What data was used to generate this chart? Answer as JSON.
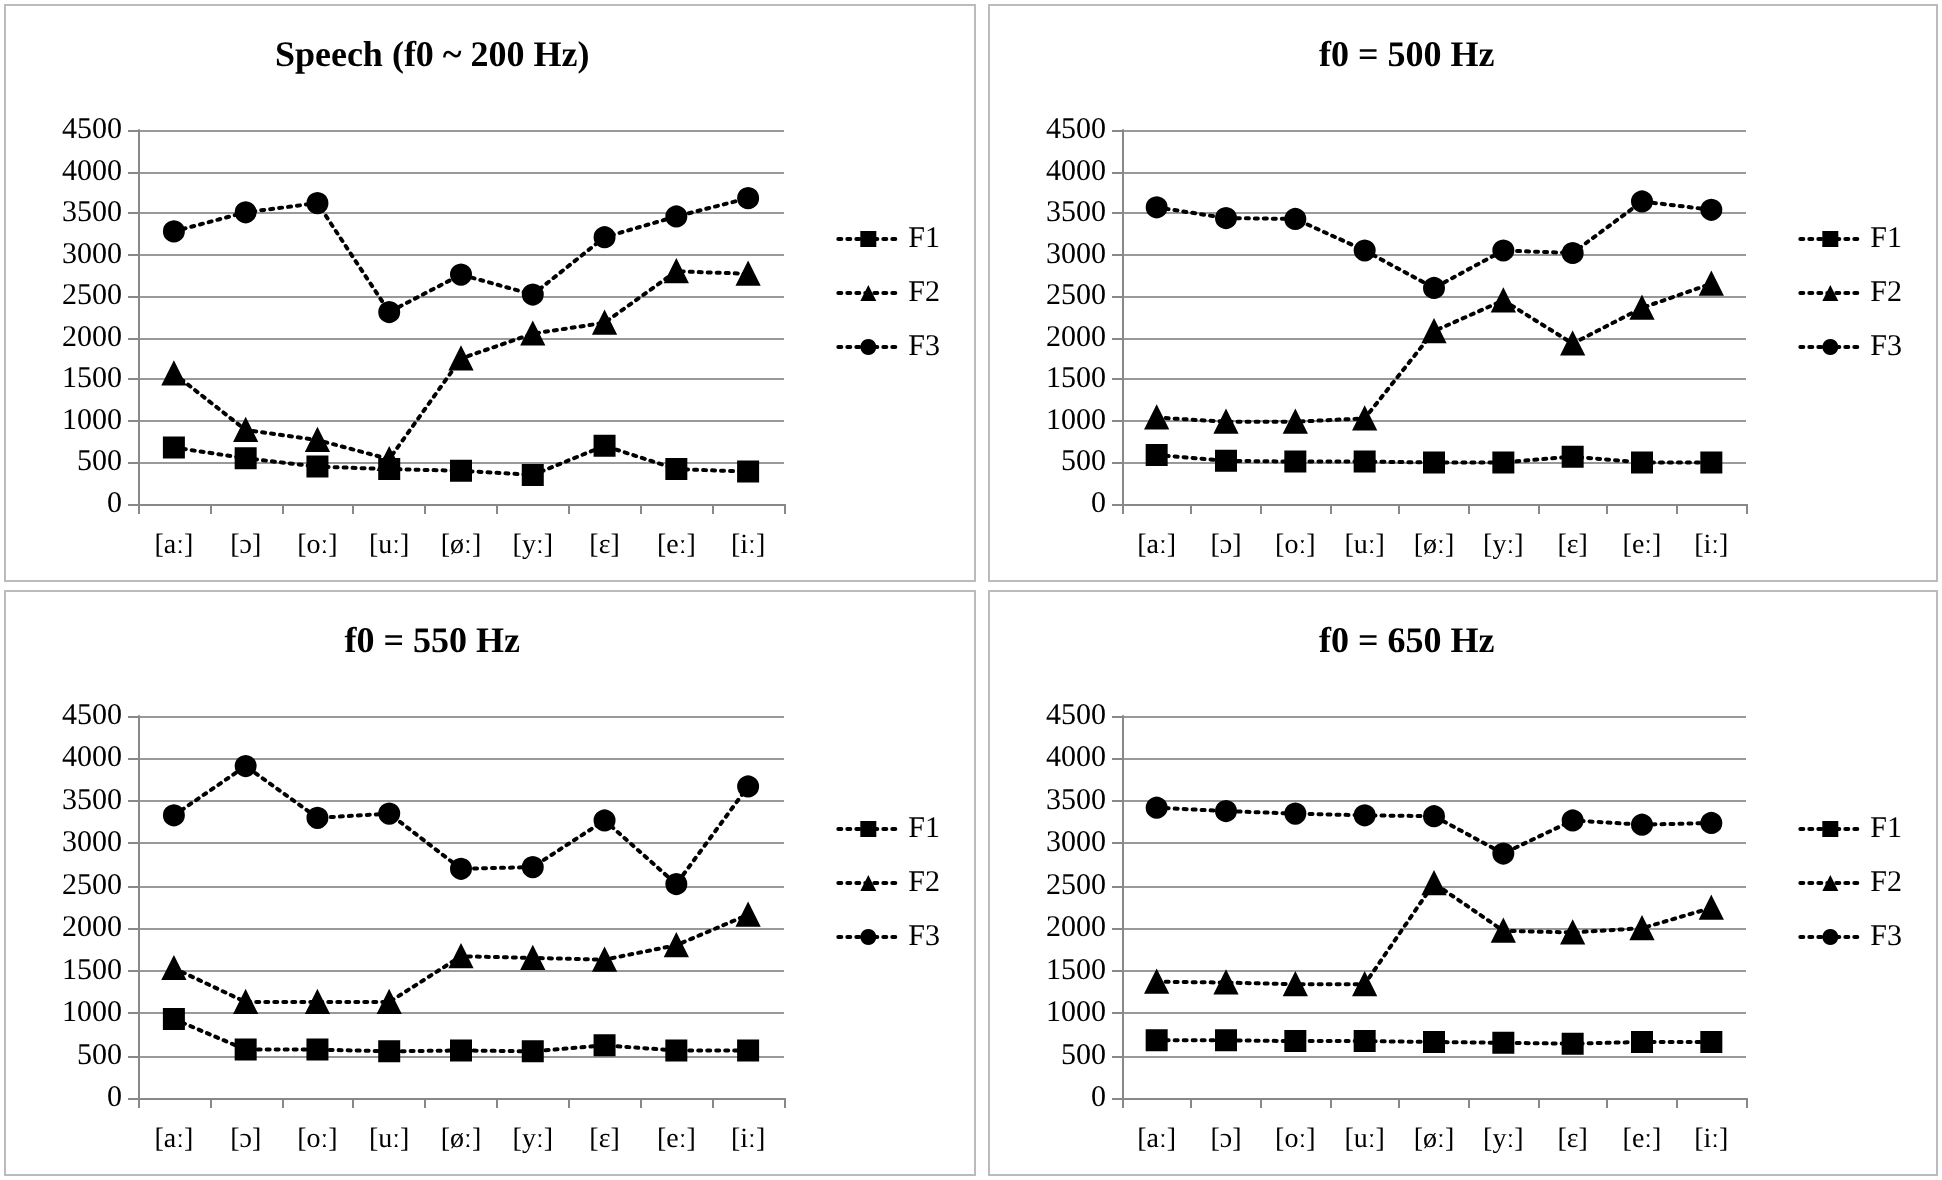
{
  "chart_data": [
    {
      "type": "line",
      "title": "Speech (f0 ~ 200 Hz)",
      "categories": [
        "[aː]",
        "[ɔ]",
        "[oː]",
        "[uː]",
        "[øː]",
        "[yː]",
        "[ɛ]",
        "[eː]",
        "[iː]"
      ],
      "ylim": [
        0,
        4500
      ],
      "yticks": [
        0,
        500,
        1000,
        1500,
        2000,
        2500,
        3000,
        3500,
        4000,
        4500
      ],
      "grid": "y",
      "legend": "right",
      "line_style": "dotted",
      "series": [
        {
          "name": "F1",
          "color": "#000000",
          "marker": "square",
          "values": [
            680,
            550,
            450,
            420,
            400,
            350,
            700,
            420,
            390
          ]
        },
        {
          "name": "F2",
          "color": "#000000",
          "marker": "triangle",
          "values": [
            1570,
            890,
            770,
            540,
            1750,
            2050,
            2180,
            2800,
            2770
          ]
        },
        {
          "name": "F3",
          "color": "#000000",
          "marker": "circle",
          "values": [
            3280,
            3510,
            3620,
            2310,
            2760,
            2520,
            3210,
            3460,
            3680
          ]
        }
      ]
    },
    {
      "type": "line",
      "title": "f0 = 500 Hz",
      "categories": [
        "[aː]",
        "[ɔ]",
        "[oː]",
        "[uː]",
        "[øː]",
        "[yː]",
        "[ɛ]",
        "[eː]",
        "[iː]"
      ],
      "ylim": [
        0,
        4500
      ],
      "yticks": [
        0,
        500,
        1000,
        1500,
        2000,
        2500,
        3000,
        3500,
        4000,
        4500
      ],
      "grid": "y",
      "legend": "right",
      "line_style": "dotted",
      "series": [
        {
          "name": "F1",
          "color": "#000000",
          "marker": "square",
          "values": [
            590,
            520,
            510,
            510,
            500,
            500,
            570,
            500,
            500
          ]
        },
        {
          "name": "F2",
          "color": "#000000",
          "marker": "triangle",
          "values": [
            1040,
            990,
            990,
            1030,
            2080,
            2450,
            1930,
            2360,
            2650
          ]
        },
        {
          "name": "F3",
          "color": "#000000",
          "marker": "circle",
          "values": [
            3570,
            3440,
            3430,
            3050,
            2600,
            3050,
            3020,
            3640,
            3540
          ]
        }
      ]
    },
    {
      "type": "line",
      "title": "f0 = 550 Hz",
      "categories": [
        "[aː]",
        "[ɔ]",
        "[oː]",
        "[uː]",
        "[øː]",
        "[yː]",
        "[ɛ]",
        "[eː]",
        "[iː]"
      ],
      "ylim": [
        0,
        4500
      ],
      "yticks": [
        0,
        500,
        1000,
        1500,
        2000,
        2500,
        3000,
        3500,
        4000,
        4500
      ],
      "grid": "y",
      "legend": "right",
      "line_style": "dotted",
      "series": [
        {
          "name": "F1",
          "color": "#000000",
          "marker": "square",
          "values": [
            930,
            570,
            570,
            550,
            560,
            550,
            620,
            560,
            560
          ]
        },
        {
          "name": "F2",
          "color": "#000000",
          "marker": "triangle",
          "values": [
            1530,
            1130,
            1130,
            1130,
            1670,
            1650,
            1630,
            1800,
            2160
          ]
        },
        {
          "name": "F3",
          "color": "#000000",
          "marker": "circle",
          "values": [
            3330,
            3910,
            3300,
            3350,
            2700,
            2720,
            3270,
            2520,
            3670
          ]
        }
      ]
    },
    {
      "type": "line",
      "title": "f0 = 650 Hz",
      "categories": [
        "[aː]",
        "[ɔ]",
        "[oː]",
        "[uː]",
        "[øː]",
        "[yː]",
        "[ɛ]",
        "[eː]",
        "[iː]"
      ],
      "ylim": [
        0,
        4500
      ],
      "yticks": [
        0,
        500,
        1000,
        1500,
        2000,
        2500,
        3000,
        3500,
        4000,
        4500
      ],
      "grid": "y",
      "legend": "right",
      "line_style": "dotted",
      "series": [
        {
          "name": "F1",
          "color": "#000000",
          "marker": "square",
          "values": [
            680,
            680,
            670,
            670,
            660,
            650,
            640,
            660,
            660
          ]
        },
        {
          "name": "F2",
          "color": "#000000",
          "marker": "triangle",
          "values": [
            1370,
            1360,
            1340,
            1340,
            2530,
            1970,
            1950,
            2000,
            2240
          ]
        },
        {
          "name": "F3",
          "color": "#000000",
          "marker": "circle",
          "values": [
            3420,
            3380,
            3350,
            3330,
            3320,
            2880,
            3270,
            3220,
            3240
          ]
        }
      ]
    }
  ]
}
